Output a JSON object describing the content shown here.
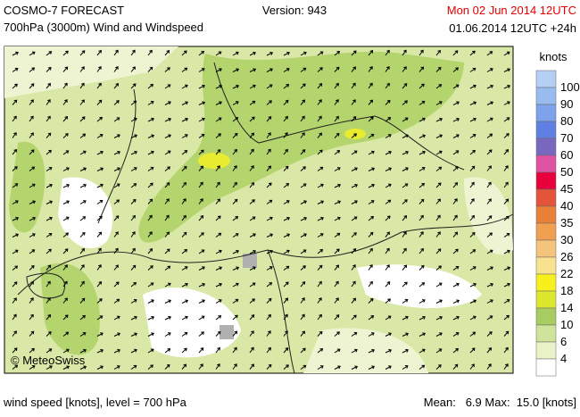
{
  "header": {
    "model": "COSMO-7 FORECAST",
    "field": "700hPa (3000m) Wind and Windspeed",
    "version": "Version: 943",
    "run_date": "Mon 02 Jun 2014 12UTC",
    "valid": "01.06.2014 12UTC +24h"
  },
  "legend": {
    "unit": "knots",
    "labels": [
      "100",
      "90",
      "80",
      "70",
      "60",
      "50",
      "45",
      "40",
      "35",
      "30",
      "26",
      "22",
      "18",
      "14",
      "10",
      "6",
      "4"
    ],
    "colors": [
      "#b4cff4",
      "#98bcf0",
      "#7ea2ec",
      "#5f80e2",
      "#7868c0",
      "#e052a2",
      "#e8003c",
      "#e4543a",
      "#e88038",
      "#f0a050",
      "#f4c47c",
      "#f8e28e",
      "#f8f01c",
      "#dce82e",
      "#a8cc60",
      "#cfe49a",
      "#eaf2c8",
      "#ffffff"
    ]
  },
  "copyright": "© MeteoSwiss",
  "footer": {
    "left": "wind speed [knots], level = 700 hPa",
    "right": "Mean:   6.9 Max:  15.0 [knots]"
  }
}
